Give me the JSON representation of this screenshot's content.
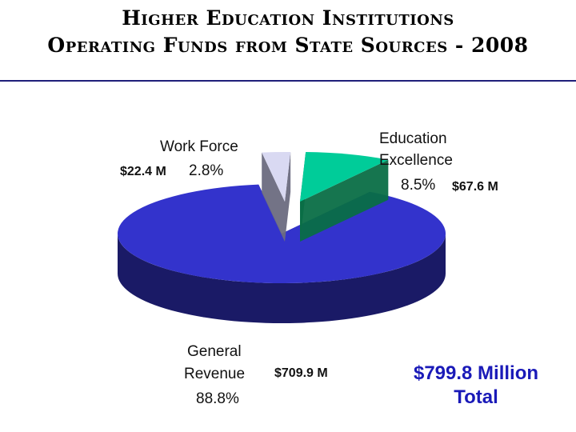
{
  "chart_data": {
    "type": "pie",
    "title": "Higher Education Institutions",
    "subtitle": "Operating Funds from State Sources - 2008",
    "slices": [
      {
        "label": "Education Excellence",
        "percent": 8.5,
        "amount": "$67.6 M",
        "color": "#00cc99",
        "side": "#0a6e46"
      },
      {
        "label": "General Revenue",
        "percent": 88.8,
        "amount": "$709.9 M",
        "color": "#3333cc",
        "side": "#1a1a66"
      },
      {
        "label": "Work Force",
        "percent": 2.8,
        "amount": "$22.4 M",
        "color": "#d9d9f2",
        "side": "#6b6b80"
      }
    ],
    "slice_labels": {
      "ee_line1": "Education",
      "ee_line2": "Excellence",
      "ee_pct": "8.5%",
      "ee_amt": "$67.6 M",
      "gr_line1": "General",
      "gr_line2": "Revenue",
      "gr_pct": "88.8%",
      "gr_amt": "$709.9 M",
      "wf_line1": "Work Force",
      "wf_pct": "2.8%",
      "wf_amt": "$22.4 M"
    },
    "total_line1": "$799.8 Million",
    "total_line2": "Total"
  }
}
